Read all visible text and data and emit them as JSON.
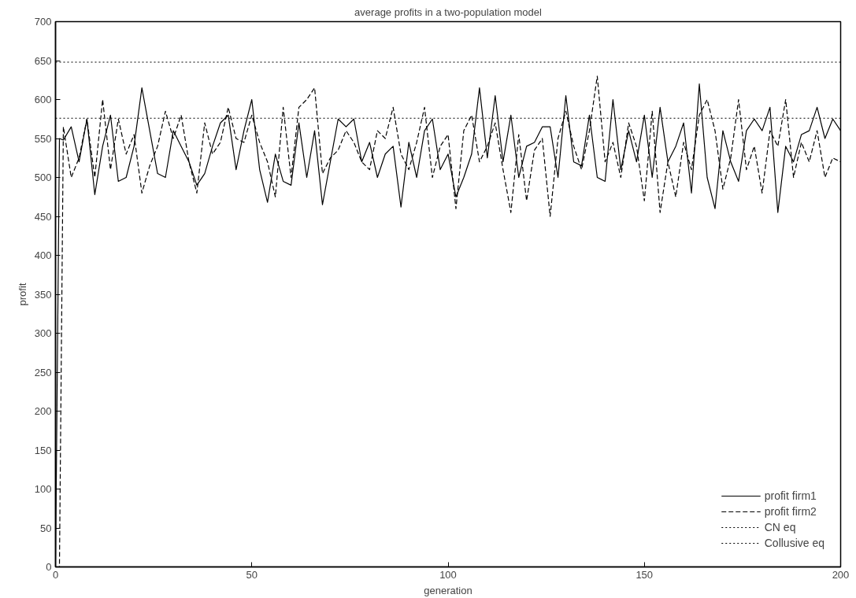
{
  "chart_data": {
    "type": "line",
    "title": "average profits in a two-population model",
    "xlabel": "generation",
    "ylabel": "profit",
    "xlim": [
      0,
      200
    ],
    "ylim": [
      0,
      700
    ],
    "xticks": [
      0,
      50,
      100,
      150,
      200
    ],
    "yticks": [
      0,
      50,
      100,
      150,
      200,
      250,
      300,
      350,
      400,
      450,
      500,
      550,
      600,
      650,
      700
    ],
    "grid": false,
    "legend": "bottom right",
    "marker": "none",
    "series": [
      {
        "name": "profit firm1",
        "color": "#000000",
        "line_style": "solid",
        "x": [
          0,
          1,
          2,
          4,
          6,
          8,
          10,
          12,
          14,
          16,
          18,
          20,
          22,
          24,
          26,
          28,
          30,
          32,
          34,
          36,
          38,
          40,
          42,
          44,
          46,
          48,
          50,
          52,
          54,
          56,
          58,
          60,
          62,
          64,
          66,
          68,
          70,
          72,
          74,
          76,
          78,
          80,
          82,
          84,
          86,
          88,
          90,
          92,
          94,
          96,
          98,
          100,
          102,
          104,
          106,
          108,
          110,
          112,
          114,
          116,
          118,
          120,
          122,
          124,
          126,
          128,
          130,
          132,
          134,
          136,
          138,
          140,
          142,
          144,
          146,
          148,
          150,
          152,
          154,
          156,
          158,
          160,
          162,
          164,
          166,
          168,
          170,
          172,
          174,
          176,
          178,
          180,
          182,
          184,
          186,
          188,
          190,
          192,
          194,
          196,
          198,
          200
        ],
        "values": [
          0,
          550,
          548,
          565,
          520,
          575,
          478,
          540,
          580,
          495,
          500,
          540,
          615,
          560,
          505,
          500,
          560,
          540,
          520,
          490,
          505,
          540,
          570,
          580,
          510,
          560,
          600,
          510,
          468,
          530,
          495,
          490,
          570,
          500,
          560,
          465,
          520,
          575,
          565,
          575,
          520,
          545,
          500,
          530,
          540,
          462,
          545,
          500,
          560,
          575,
          510,
          530,
          475,
          500,
          530,
          615,
          525,
          605,
          520,
          580,
          500,
          540,
          545,
          565,
          565,
          500,
          605,
          520,
          515,
          580,
          500,
          495,
          600,
          510,
          560,
          520,
          580,
          500,
          590,
          520,
          540,
          570,
          480,
          620,
          500,
          460,
          560,
          520,
          495,
          560,
          575,
          560,
          590,
          455,
          540,
          520,
          555,
          560,
          590,
          550,
          575,
          560
        ]
      },
      {
        "name": "profit firm2",
        "color": "#000000",
        "line_style": "dashed",
        "x": [
          0,
          1,
          2,
          4,
          6,
          8,
          10,
          12,
          14,
          16,
          18,
          20,
          22,
          24,
          26,
          28,
          30,
          32,
          34,
          36,
          38,
          40,
          42,
          44,
          46,
          48,
          50,
          52,
          54,
          56,
          58,
          60,
          62,
          64,
          66,
          68,
          70,
          72,
          74,
          76,
          78,
          80,
          82,
          84,
          86,
          88,
          90,
          92,
          94,
          96,
          98,
          100,
          102,
          104,
          106,
          108,
          110,
          112,
          114,
          116,
          118,
          120,
          122,
          124,
          126,
          128,
          130,
          132,
          134,
          136,
          138,
          140,
          142,
          144,
          146,
          148,
          150,
          152,
          154,
          156,
          158,
          160,
          162,
          164,
          166,
          168,
          170,
          172,
          174,
          176,
          178,
          180,
          182,
          184,
          186,
          188,
          190,
          192,
          194,
          196,
          198,
          200
        ],
        "values": [
          0,
          0,
          565,
          500,
          525,
          575,
          500,
          600,
          510,
          575,
          530,
          555,
          480,
          515,
          540,
          585,
          550,
          580,
          520,
          480,
          570,
          530,
          545,
          590,
          550,
          545,
          580,
          545,
          520,
          475,
          590,
          500,
          590,
          600,
          615,
          505,
          525,
          535,
          560,
          545,
          520,
          510,
          560,
          550,
          590,
          530,
          510,
          545,
          590,
          500,
          540,
          555,
          460,
          560,
          580,
          520,
          540,
          570,
          510,
          455,
          555,
          470,
          535,
          550,
          450,
          550,
          585,
          540,
          510,
          560,
          630,
          520,
          545,
          500,
          570,
          540,
          470,
          585,
          455,
          520,
          475,
          545,
          510,
          580,
          600,
          560,
          485,
          525,
          600,
          510,
          540,
          480,
          560,
          540,
          600,
          500,
          545,
          520,
          560,
          500,
          525,
          520
        ]
      },
      {
        "name": "CN eq",
        "color": "#000000",
        "line_style": "dotted",
        "x": [
          0,
          200
        ],
        "values": [
          576,
          576
        ]
      },
      {
        "name": "Collusive eq",
        "color": "#000000",
        "line_style": "dotted",
        "x": [
          0,
          200
        ],
        "values": [
          648,
          648
        ]
      }
    ]
  }
}
